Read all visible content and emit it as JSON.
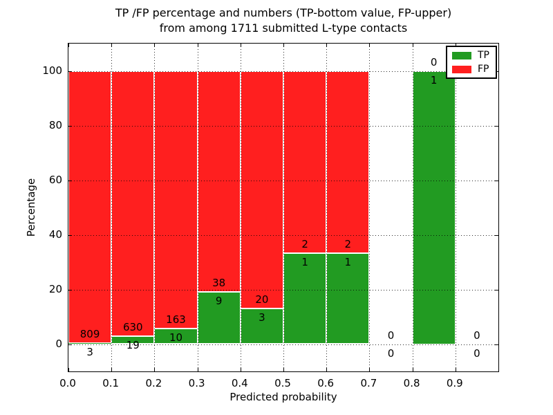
{
  "figure": {
    "title_line1": "TP /FP percentage and numbers (TP-bottom value, FP-upper)",
    "title_line2": "from among 1711 submitted L-type contacts"
  },
  "colors": {
    "tp_green": "#229b22",
    "fp_red": "#ff1f1f",
    "background": "#ffffff",
    "text": "#000000",
    "grid": "#000000"
  },
  "chart_data": {
    "type": "bar",
    "stacked": true,
    "normalized": "each non-empty bin stacks TP (bottom, green) + FP (top, red) to 100%",
    "title": "TP /FP percentage and numbers (TP-bottom value, FP-upper) from among 1711 submitted L-type contacts",
    "xlabel": "Predicted probability",
    "ylabel": "Percentage",
    "xlim": [
      0.0,
      1.0
    ],
    "ylim": [
      -10,
      110
    ],
    "bin_width": 0.1,
    "total_submitted_contacts": 1711,
    "grid": "dotted black, drawn over bars, at every x and y tick",
    "legend": {
      "position": "upper right",
      "entries": [
        {
          "label": "TP",
          "color": "#229b22"
        },
        {
          "label": "FP",
          "color": "#ff1f1f"
        }
      ]
    },
    "xticks": [
      {
        "v": 0.0,
        "label": "0.0"
      },
      {
        "v": 0.1,
        "label": "0.1"
      },
      {
        "v": 0.2,
        "label": "0.2"
      },
      {
        "v": 0.3,
        "label": "0.3"
      },
      {
        "v": 0.4,
        "label": "0.4"
      },
      {
        "v": 0.5,
        "label": "0.5"
      },
      {
        "v": 0.6,
        "label": "0.6"
      },
      {
        "v": 0.7,
        "label": "0.7"
      },
      {
        "v": 0.8,
        "label": "0.8"
      },
      {
        "v": 0.9,
        "label": "0.9"
      }
    ],
    "yticks": [
      {
        "v": 0,
        "label": "0"
      },
      {
        "v": 20,
        "label": "20"
      },
      {
        "v": 40,
        "label": "40"
      },
      {
        "v": 60,
        "label": "60"
      },
      {
        "v": 80,
        "label": "80"
      },
      {
        "v": 100,
        "label": "100"
      }
    ],
    "series": [
      {
        "name": "TP",
        "color": "#229b22",
        "values": [
          3,
          19,
          10,
          9,
          3,
          1,
          1,
          0,
          1,
          0
        ]
      },
      {
        "name": "FP",
        "color": "#ff1f1f",
        "values": [
          809,
          630,
          163,
          38,
          20,
          2,
          2,
          0,
          0,
          0
        ]
      }
    ],
    "bins": [
      {
        "x0": 0.0,
        "x1": 0.1,
        "tp": 3,
        "fp": 809,
        "tp_percent": 0.37
      },
      {
        "x0": 0.1,
        "x1": 0.2,
        "tp": 19,
        "fp": 630,
        "tp_percent": 2.93
      },
      {
        "x0": 0.2,
        "x1": 0.3,
        "tp": 10,
        "fp": 163,
        "tp_percent": 5.78
      },
      {
        "x0": 0.3,
        "x1": 0.4,
        "tp": 9,
        "fp": 38,
        "tp_percent": 19.15
      },
      {
        "x0": 0.4,
        "x1": 0.5,
        "tp": 3,
        "fp": 20,
        "tp_percent": 13.04
      },
      {
        "x0": 0.5,
        "x1": 0.6,
        "tp": 1,
        "fp": 2,
        "tp_percent": 33.33
      },
      {
        "x0": 0.6,
        "x1": 0.7,
        "tp": 1,
        "fp": 2,
        "tp_percent": 33.33
      },
      {
        "x0": 0.7,
        "x1": 0.8,
        "tp": 0,
        "fp": 0,
        "tp_percent": 0.0
      },
      {
        "x0": 0.8,
        "x1": 0.9,
        "tp": 1,
        "fp": 0,
        "tp_percent": 100.0
      },
      {
        "x0": 0.9,
        "x1": 1.0,
        "tp": 0,
        "fp": 0,
        "tp_percent": 0.0
      }
    ]
  }
}
